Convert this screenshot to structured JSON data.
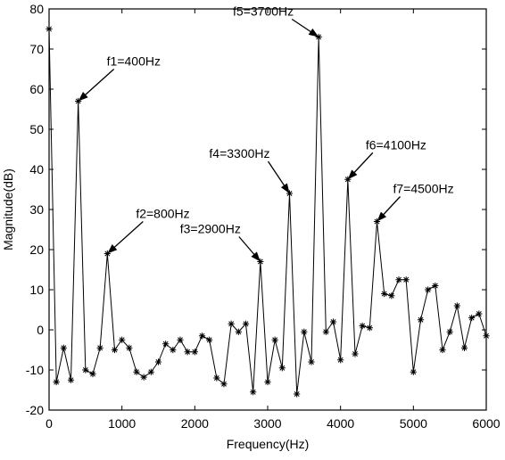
{
  "chart_data": {
    "type": "line",
    "xlabel": "Frequency(Hz)",
    "ylabel": "Magnitude(dB)",
    "xlim": [
      0,
      6000
    ],
    "ylim": [
      -20,
      80
    ],
    "xticks": [
      0,
      1000,
      2000,
      3000,
      4000,
      5000,
      6000
    ],
    "yticks": [
      -20,
      -10,
      0,
      10,
      20,
      30,
      40,
      50,
      60,
      70,
      80
    ],
    "grid": false,
    "marker": "asterisk",
    "series": [
      {
        "x": [
          0,
          100,
          200,
          300,
          400,
          500,
          600,
          700,
          800,
          900,
          1000,
          1100,
          1200,
          1300,
          1400,
          1500,
          1600,
          1700,
          1800,
          1900,
          2000,
          2100,
          2200,
          2300,
          2400,
          2500,
          2600,
          2700,
          2800,
          2900,
          3000,
          3100,
          3200,
          3300,
          3400,
          3500,
          3600,
          3700,
          3800,
          3900,
          4000,
          4100,
          4200,
          4300,
          4400,
          4500,
          4600,
          4700,
          4800,
          4900,
          5000,
          5100,
          5200,
          5300,
          5400,
          5500,
          5600,
          5700,
          5800,
          5900,
          6000
        ],
        "y": [
          75,
          -13,
          -4.5,
          -12.5,
          57,
          -10,
          -11,
          -4.5,
          19,
          -5,
          -2.5,
          -4.5,
          -10.5,
          -11.8,
          -10.5,
          -8,
          -3.5,
          -5,
          -2.5,
          -5.5,
          -5.5,
          -1.5,
          -2.5,
          -12,
          -13.5,
          1.5,
          -0.5,
          1.5,
          -15.5,
          17,
          -13,
          -2.5,
          -9.5,
          34,
          -16,
          -0.5,
          -8,
          73,
          -0.5,
          2,
          -7.5,
          37.5,
          -6,
          1,
          0.5,
          27,
          9,
          8.5,
          12.5,
          12.5,
          -10.5,
          2.5,
          10,
          11,
          -5,
          -0.5,
          6,
          -4.5,
          3,
          4,
          -1.5
        ]
      }
    ],
    "annotations": [
      {
        "text": "f1=400Hz",
        "x": 400,
        "y": 57
      },
      {
        "text": "f2=800Hz",
        "x": 800,
        "y": 19
      },
      {
        "text": "f3=2900Hz",
        "x": 2900,
        "y": 17
      },
      {
        "text": "f4=3300Hz",
        "x": 3300,
        "y": 34
      },
      {
        "text": "f5=3700Hz",
        "x": 3700,
        "y": 73
      },
      {
        "text": "f6=4100Hz",
        "x": 4100,
        "y": 37.5
      },
      {
        "text": "f7=4500Hz",
        "x": 4500,
        "y": 27
      }
    ]
  }
}
